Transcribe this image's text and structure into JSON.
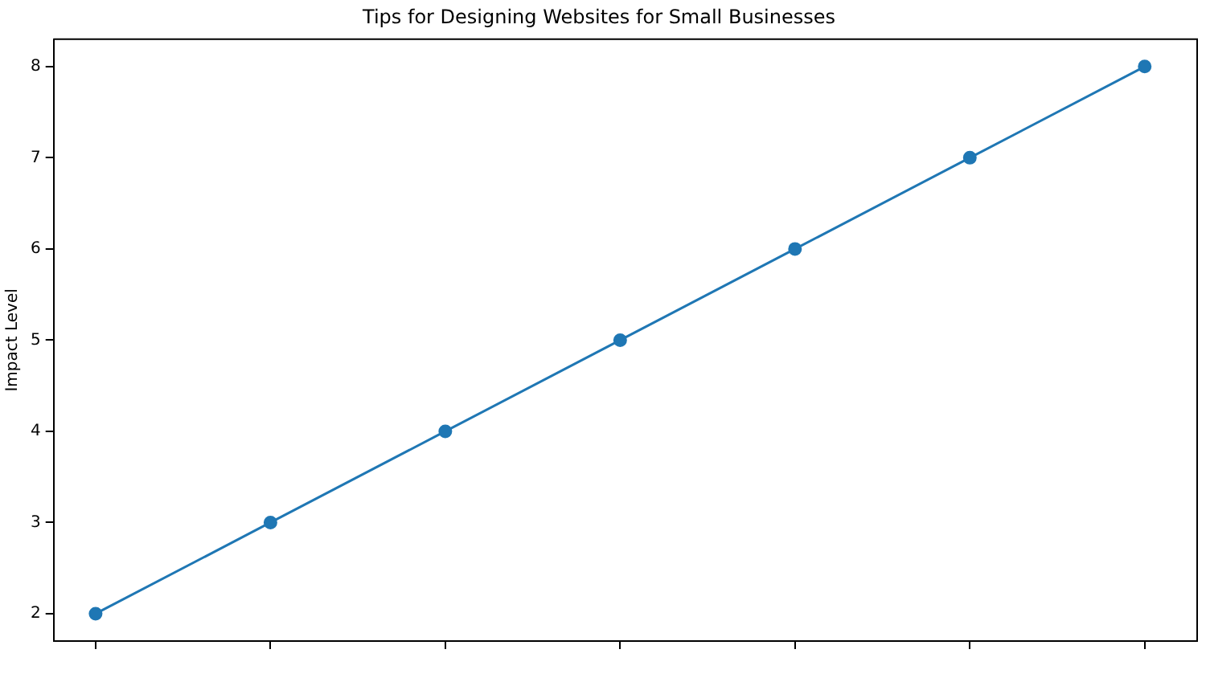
{
  "chart_data": {
    "type": "line",
    "title": "Tips for Designing Websites for Small Businesses",
    "ylabel": "Impact Level",
    "categories": [
      null,
      null,
      null,
      null,
      null,
      null,
      null
    ],
    "series": [
      {
        "color": "#1f77b4",
        "values": [
          2,
          3,
          4,
          5,
          6,
          7,
          8
        ]
      }
    ],
    "ylim": [
      1.7,
      8.3
    ],
    "yticks": [
      2,
      3,
      4,
      5,
      6,
      7,
      8
    ],
    "grid": false,
    "legend": false,
    "marker": "circle",
    "line_style": "solid",
    "tick_labels": "y"
  }
}
